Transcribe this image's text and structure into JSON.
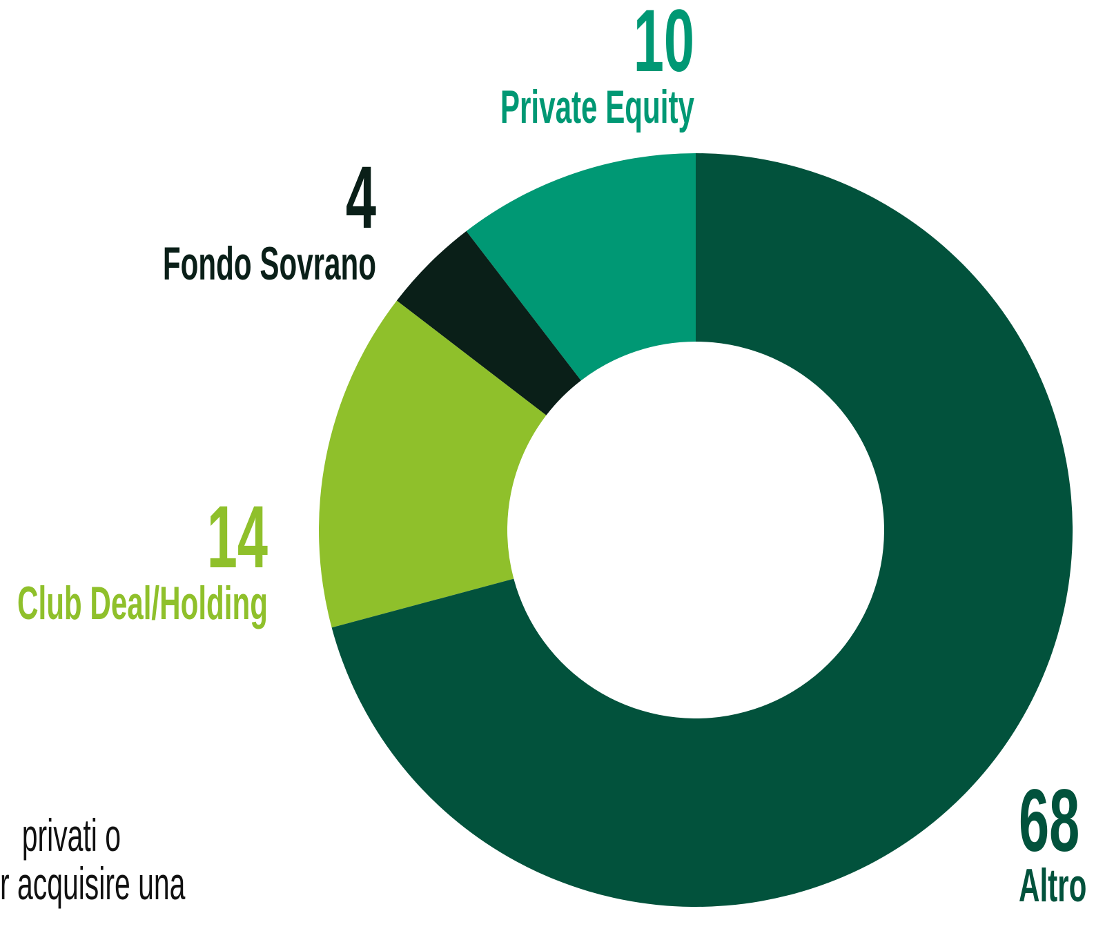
{
  "chart_data": {
    "type": "donut",
    "categories": [
      "Altro",
      "Club Deal/Holding",
      "Fondo Sovrano",
      "Private Equity"
    ],
    "values": [
      68,
      14,
      4,
      10
    ],
    "colors": [
      "#02523c",
      "#8fc02b",
      "#0a1f18",
      "#009874"
    ]
  },
  "body_text": [
    "privati o",
    "r acquisire una"
  ]
}
